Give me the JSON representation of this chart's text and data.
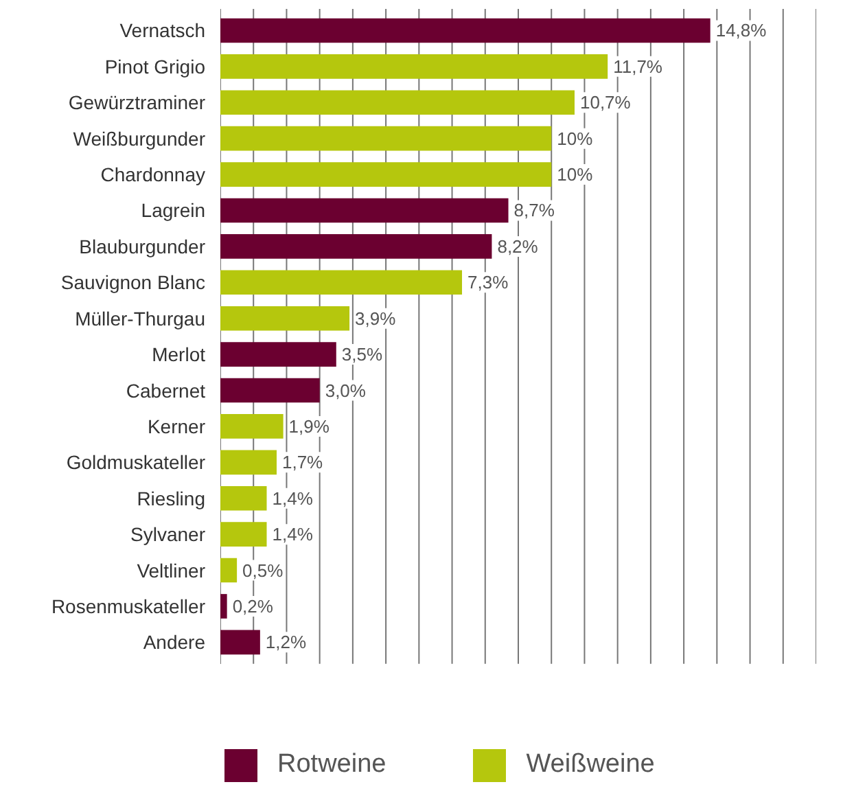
{
  "chart_data": {
    "type": "bar",
    "orientation": "horizontal",
    "categories": [
      "Vernatsch",
      "Pinot Grigio",
      "Gewürztraminer",
      "Weißburgunder",
      "Chardonnay",
      "Lagrein",
      "Blauburgunder",
      "Sauvignon Blanc",
      "Müller-Thurgau",
      "Merlot",
      "Cabernet",
      "Kerner",
      "Goldmuskateller",
      "Riesling",
      "Sylvaner",
      "Veltliner",
      "Rosenmuskateller",
      "Andere"
    ],
    "series": [
      {
        "name": "Rotweine",
        "color": "#6b0030",
        "values": [
          14.8,
          null,
          null,
          null,
          null,
          8.7,
          8.2,
          null,
          null,
          3.5,
          3.0,
          null,
          null,
          null,
          null,
          null,
          0.2,
          1.2
        ],
        "value_labels": [
          "14,8%",
          null,
          null,
          null,
          null,
          "8,7%",
          "8,2%",
          null,
          null,
          "3,5%",
          "3,0%",
          null,
          null,
          null,
          null,
          null,
          "0,2%",
          "1,2%"
        ]
      },
      {
        "name": "Weißweine",
        "color": "#b5c70d",
        "values": [
          null,
          11.7,
          10.7,
          10,
          10,
          null,
          null,
          7.3,
          3.9,
          null,
          null,
          1.9,
          1.7,
          1.4,
          1.4,
          0.5,
          null,
          null
        ],
        "value_labels": [
          null,
          "11,7%",
          "10,7%",
          "10%",
          "10%",
          null,
          null,
          "7,3%",
          "3,9%",
          null,
          null,
          "1,9%",
          "1,7%",
          "1,4%",
          "1,4%",
          "0,5%",
          null,
          null
        ]
      }
    ],
    "xticks": [
      {
        "value": 0,
        "label": null
      },
      {
        "value": 1,
        "label": null
      },
      {
        "value": 2,
        "label": null
      },
      {
        "value": 3,
        "label": null
      },
      {
        "value": 4,
        "label": null
      },
      {
        "value": 5,
        "label": null
      },
      {
        "value": 6,
        "label": null
      },
      {
        "value": 7,
        "label": null
      },
      {
        "value": 8,
        "label": null
      },
      {
        "value": 9,
        "label": null
      },
      {
        "value": 10,
        "label": null
      },
      {
        "value": 11,
        "label": null
      },
      {
        "value": 12,
        "label": null
      },
      {
        "value": 13,
        "label": null
      },
      {
        "value": 14,
        "label": null
      },
      {
        "value": 15,
        "label": null
      },
      {
        "value": 16,
        "label": null
      },
      {
        "value": 17,
        "label": null
      },
      {
        "value": 18,
        "label": null
      }
    ],
    "grid": "x",
    "legend": "bottom",
    "tick_labels": "y"
  }
}
